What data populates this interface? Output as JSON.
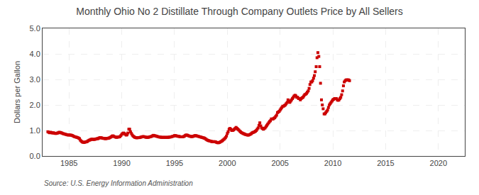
{
  "chart_data": {
    "type": "scatter",
    "title": "Monthly Ohio No 2 Distillate Through Company Outlets Price by All Sellers",
    "ylabel": "Dollars per Gallon",
    "annotations": [
      {
        "text": "Source: U.S. Energy Information Administration"
      }
    ],
    "marker": "square",
    "color": "#CC0000",
    "grid": true,
    "xlim": [
      1982.5,
      2022.5
    ],
    "xticks": [
      1985,
      1990,
      1995,
      2000,
      2005,
      2010,
      2015,
      2020
    ],
    "ylim": [
      0.0,
      5.0
    ],
    "yticks": [
      {
        "value": 0.0,
        "label": "0.0"
      },
      {
        "value": 1.0,
        "label": "1.0"
      },
      {
        "value": 2.0,
        "label": "2.0"
      },
      {
        "value": 3.0,
        "label": "3.0"
      },
      {
        "value": 4.0,
        "label": "4.0"
      },
      {
        "value": 5.0,
        "label": "5.0"
      }
    ],
    "x": [
      1983.0,
      1983.08,
      1983.17,
      1983.25,
      1983.33,
      1983.42,
      1983.5,
      1983.58,
      1983.67,
      1983.75,
      1983.83,
      1983.92,
      1984.0,
      1984.08,
      1984.17,
      1984.25,
      1984.33,
      1984.42,
      1984.5,
      1984.58,
      1984.67,
      1984.75,
      1984.83,
      1984.92,
      1985.0,
      1985.08,
      1985.17,
      1985.25,
      1985.33,
      1985.42,
      1985.5,
      1985.58,
      1985.67,
      1985.75,
      1985.83,
      1985.92,
      1986.0,
      1986.08,
      1986.17,
      1986.25,
      1986.33,
      1986.42,
      1986.5,
      1986.58,
      1986.67,
      1986.75,
      1986.83,
      1986.92,
      1987.0,
      1987.08,
      1987.17,
      1987.25,
      1987.33,
      1987.42,
      1987.5,
      1987.58,
      1987.67,
      1987.75,
      1987.83,
      1987.92,
      1988.0,
      1988.08,
      1988.17,
      1988.25,
      1988.33,
      1988.42,
      1988.5,
      1988.58,
      1988.67,
      1988.75,
      1988.83,
      1988.92,
      1989.0,
      1989.08,
      1989.17,
      1989.25,
      1989.33,
      1989.42,
      1989.5,
      1989.58,
      1989.67,
      1989.75,
      1989.83,
      1989.92,
      1990.0,
      1990.08,
      1990.17,
      1990.25,
      1990.33,
      1990.42,
      1990.5,
      1990.58,
      1990.67,
      1990.75,
      1990.83,
      1990.92,
      1991.0,
      1991.08,
      1991.17,
      1991.25,
      1991.33,
      1991.42,
      1991.5,
      1991.58,
      1991.67,
      1991.75,
      1991.83,
      1991.92,
      1992.0,
      1992.08,
      1992.17,
      1992.25,
      1992.33,
      1992.42,
      1992.5,
      1992.58,
      1992.67,
      1992.75,
      1992.83,
      1992.92,
      1993.0,
      1993.08,
      1993.17,
      1993.25,
      1993.33,
      1993.42,
      1993.5,
      1993.58,
      1993.67,
      1993.75,
      1993.83,
      1993.92,
      1994.0,
      1994.08,
      1994.17,
      1994.25,
      1994.33,
      1994.42,
      1994.5,
      1994.58,
      1994.67,
      1994.75,
      1994.83,
      1994.92,
      1995.0,
      1995.08,
      1995.17,
      1995.25,
      1995.33,
      1995.42,
      1995.5,
      1995.58,
      1995.67,
      1995.75,
      1995.83,
      1995.92,
      1996.0,
      1996.08,
      1996.17,
      1996.25,
      1996.33,
      1996.42,
      1996.5,
      1996.58,
      1996.67,
      1996.75,
      1996.83,
      1996.92,
      1997.0,
      1997.08,
      1997.17,
      1997.25,
      1997.33,
      1997.42,
      1997.5,
      1997.58,
      1997.67,
      1997.75,
      1997.83,
      1997.92,
      1998.0,
      1998.08,
      1998.17,
      1998.25,
      1998.33,
      1998.42,
      1998.5,
      1998.58,
      1998.67,
      1998.75,
      1998.83,
      1998.92,
      1999.0,
      1999.08,
      1999.17,
      1999.25,
      1999.33,
      1999.42,
      1999.5,
      1999.58,
      1999.67,
      1999.75,
      1999.83,
      1999.92,
      2000.0,
      2000.08,
      2000.17,
      2000.25,
      2000.33,
      2000.42,
      2000.5,
      2000.58,
      2000.67,
      2000.75,
      2000.83,
      2000.92,
      2001.0,
      2001.08,
      2001.17,
      2001.25,
      2001.33,
      2001.42,
      2001.5,
      2001.58,
      2001.67,
      2001.75,
      2001.83,
      2001.92,
      2002.0,
      2002.08,
      2002.17,
      2002.25,
      2002.33,
      2002.42,
      2002.5,
      2002.58,
      2002.67,
      2002.75,
      2002.83,
      2002.92,
      2003.0,
      2003.08,
      2003.17,
      2003.25,
      2003.33,
      2003.42,
      2003.5,
      2003.58,
      2003.67,
      2003.75,
      2003.83,
      2003.92,
      2004.0,
      2004.08,
      2004.17,
      2004.25,
      2004.33,
      2004.42,
      2004.5,
      2004.58,
      2004.67,
      2004.75,
      2004.83,
      2004.92,
      2005.0,
      2005.08,
      2005.17,
      2005.25,
      2005.33,
      2005.42,
      2005.5,
      2005.58,
      2005.67,
      2005.75,
      2005.83,
      2005.92,
      2006.0,
      2006.08,
      2006.17,
      2006.25,
      2006.33,
      2006.42,
      2006.5,
      2006.58,
      2006.67,
      2006.75,
      2006.83,
      2006.92,
      2007.0,
      2007.08,
      2007.17,
      2007.25,
      2007.33,
      2007.42,
      2007.5,
      2007.58,
      2007.67,
      2007.75,
      2007.83,
      2007.92,
      2008.0,
      2008.08,
      2008.17,
      2008.25,
      2008.33,
      2008.42,
      2008.5,
      2008.58,
      2008.67,
      2008.75,
      2008.83,
      2008.92,
      2009.0,
      2009.08,
      2009.17,
      2009.25,
      2009.33,
      2009.42,
      2009.5,
      2009.58,
      2009.67,
      2009.75,
      2009.83,
      2009.92,
      2010.0,
      2010.08,
      2010.17,
      2010.25,
      2010.33,
      2010.42,
      2010.5,
      2010.58,
      2010.67,
      2010.75,
      2010.83,
      2010.92,
      2011.0,
      2011.08,
      2011.17,
      2011.25,
      2011.33,
      2011.42,
      2011.5,
      2011.58
    ],
    "values": [
      0.95,
      0.93,
      0.91,
      0.93,
      0.92,
      0.9,
      0.91,
      0.9,
      0.89,
      0.88,
      0.89,
      0.9,
      0.91,
      0.93,
      0.92,
      0.91,
      0.9,
      0.88,
      0.87,
      0.86,
      0.85,
      0.84,
      0.83,
      0.82,
      0.83,
      0.82,
      0.82,
      0.81,
      0.8,
      0.78,
      0.76,
      0.75,
      0.74,
      0.73,
      0.72,
      0.7,
      0.68,
      0.62,
      0.58,
      0.55,
      0.54,
      0.53,
      0.54,
      0.55,
      0.56,
      0.57,
      0.6,
      0.62,
      0.63,
      0.65,
      0.66,
      0.65,
      0.65,
      0.65,
      0.66,
      0.67,
      0.68,
      0.68,
      0.7,
      0.72,
      0.72,
      0.71,
      0.7,
      0.69,
      0.69,
      0.68,
      0.68,
      0.69,
      0.69,
      0.7,
      0.71,
      0.73,
      0.75,
      0.78,
      0.79,
      0.77,
      0.75,
      0.74,
      0.73,
      0.74,
      0.74,
      0.75,
      0.76,
      0.8,
      0.85,
      0.88,
      0.9,
      0.88,
      0.85,
      0.82,
      0.83,
      0.9,
      1.05,
      1.05,
      0.95,
      0.88,
      0.82,
      0.78,
      0.75,
      0.73,
      0.72,
      0.71,
      0.72,
      0.72,
      0.72,
      0.73,
      0.74,
      0.75,
      0.76,
      0.76,
      0.75,
      0.74,
      0.73,
      0.73,
      0.73,
      0.74,
      0.75,
      0.76,
      0.77,
      0.79,
      0.81,
      0.8,
      0.79,
      0.78,
      0.77,
      0.76,
      0.75,
      0.74,
      0.74,
      0.73,
      0.73,
      0.73,
      0.73,
      0.73,
      0.73,
      0.73,
      0.73,
      0.73,
      0.74,
      0.74,
      0.75,
      0.76,
      0.77,
      0.78,
      0.8,
      0.8,
      0.79,
      0.78,
      0.77,
      0.77,
      0.76,
      0.75,
      0.75,
      0.75,
      0.76,
      0.77,
      0.8,
      0.82,
      0.82,
      0.81,
      0.79,
      0.78,
      0.77,
      0.76,
      0.76,
      0.77,
      0.78,
      0.8,
      0.8,
      0.79,
      0.78,
      0.77,
      0.76,
      0.75,
      0.74,
      0.73,
      0.72,
      0.71,
      0.7,
      0.68,
      0.65,
      0.63,
      0.61,
      0.6,
      0.59,
      0.58,
      0.57,
      0.56,
      0.56,
      0.56,
      0.56,
      0.55,
      0.53,
      0.52,
      0.52,
      0.53,
      0.55,
      0.57,
      0.59,
      0.62,
      0.65,
      0.68,
      0.72,
      0.78,
      0.88,
      0.95,
      1.05,
      1.08,
      1.05,
      1.0,
      1.0,
      1.02,
      1.05,
      1.08,
      1.12,
      1.08,
      1.05,
      1.02,
      0.98,
      0.95,
      0.92,
      0.9,
      0.88,
      0.87,
      0.85,
      0.84,
      0.83,
      0.82,
      0.82,
      0.83,
      0.85,
      0.87,
      0.9,
      0.92,
      0.93,
      0.95,
      0.97,
      1.0,
      1.05,
      1.1,
      1.2,
      1.3,
      1.18,
      1.1,
      1.08,
      1.05,
      1.08,
      1.1,
      1.15,
      1.2,
      1.25,
      1.3,
      1.35,
      1.38,
      1.45,
      1.45,
      1.45,
      1.48,
      1.5,
      1.55,
      1.6,
      1.7,
      1.72,
      1.75,
      1.8,
      1.85,
      1.9,
      1.95,
      1.95,
      1.98,
      2.0,
      2.05,
      2.1,
      2.2,
      2.15,
      2.1,
      2.15,
      2.2,
      2.25,
      2.3,
      2.35,
      2.38,
      2.35,
      2.3,
      2.3,
      2.25,
      2.25,
      2.2,
      2.25,
      2.28,
      2.3,
      2.35,
      2.4,
      2.42,
      2.45,
      2.5,
      2.55,
      2.65,
      2.8,
      2.9,
      2.9,
      2.95,
      3.05,
      3.15,
      3.3,
      3.5,
      3.85,
      4.05,
      3.9,
      3.5,
      2.85,
      2.2,
      2.0,
      1.85,
      1.65,
      1.65,
      1.7,
      1.75,
      1.8,
      1.9,
      2.0,
      2.05,
      2.1,
      2.15,
      2.2,
      2.22,
      2.25,
      2.25,
      2.25,
      2.2,
      2.18,
      2.2,
      2.25,
      2.3,
      2.4,
      2.55,
      2.75,
      2.9,
      2.95,
      2.98,
      2.98,
      2.98,
      2.98,
      2.95
    ]
  }
}
